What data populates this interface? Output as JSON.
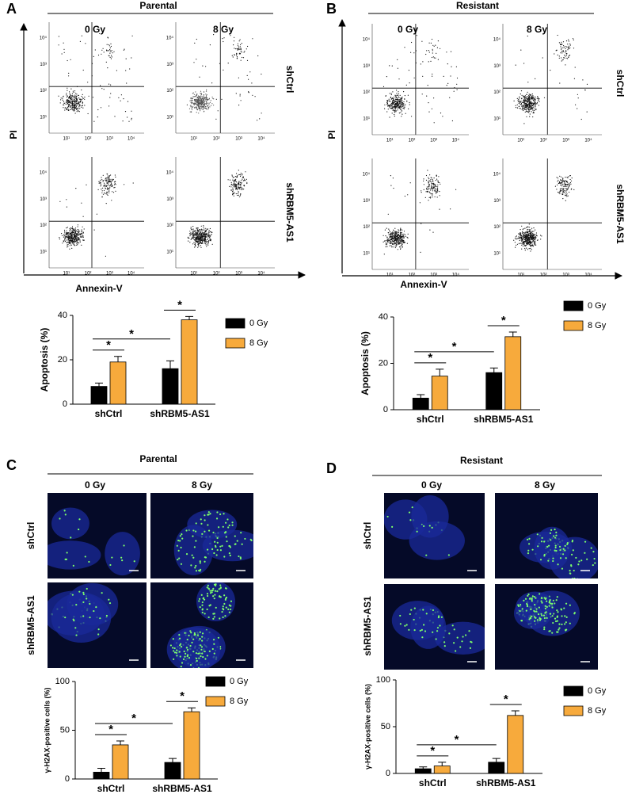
{
  "panels": [
    {
      "label": "A",
      "title": "Parental",
      "columns": [
        "0 Gy",
        "8 Gy"
      ],
      "rows": [
        "shCtrl",
        "shRBM5-AS1"
      ],
      "x_axis": "Annexin-V",
      "y_axis": "PI"
    },
    {
      "label": "B",
      "title": "Resistant",
      "columns": [
        "0 Gy",
        "8 Gy"
      ],
      "rows": [
        "shCtrl",
        "shRBM5-AS1"
      ],
      "x_axis": "Annexin-V",
      "y_axis": "PI"
    },
    {
      "label": "C",
      "title": "Parental",
      "columns": [
        "0 Gy",
        "8 Gy"
      ],
      "rows": [
        "shCtrl",
        "shRBM5-AS1"
      ]
    },
    {
      "label": "D",
      "title": "Resistant",
      "columns": [
        "0 Gy",
        "8 Gy"
      ],
      "rows": [
        "shCtrl",
        "shRBM5-AS1"
      ]
    }
  ],
  "flow_ticks": [
    "10¹",
    "10²",
    "10³",
    "10⁴"
  ],
  "chart_data": [
    {
      "type": "bar",
      "ylabel": "Apoptosis (%)",
      "categories": [
        "shCtrl",
        "shRBM5-AS1"
      ],
      "series": [
        {
          "name": "0 Gy",
          "color": "#000000",
          "values": [
            8,
            16
          ],
          "errors": [
            1.5,
            3.5
          ]
        },
        {
          "name": "8 Gy",
          "color": "#f7aa3c",
          "values": [
            19,
            38
          ],
          "errors": [
            2.5,
            1.5
          ]
        }
      ],
      "ylim": [
        0,
        40
      ],
      "yticks": [
        0,
        20,
        40
      ],
      "annotations": [
        "*",
        "*",
        "*"
      ]
    },
    {
      "type": "bar",
      "ylabel": "Apoptosis (%)",
      "categories": [
        "shCtrl",
        "shRBM5-AS1"
      ],
      "series": [
        {
          "name": "0 Gy",
          "color": "#000000",
          "values": [
            5,
            16
          ],
          "errors": [
            1.5,
            2
          ]
        },
        {
          "name": "8 Gy",
          "color": "#f7aa3c",
          "values": [
            14.5,
            31.5
          ],
          "errors": [
            3,
            2
          ]
        }
      ],
      "ylim": [
        0,
        40
      ],
      "yticks": [
        0,
        20,
        40
      ],
      "annotations": [
        "*",
        "*",
        "*"
      ]
    },
    {
      "type": "bar",
      "ylabel": "γ-H2AX-positive cells (%)",
      "categories": [
        "shCtrl",
        "shRBM5-AS1"
      ],
      "series": [
        {
          "name": "0 Gy",
          "color": "#000000",
          "values": [
            7,
            17
          ],
          "errors": [
            4,
            4
          ]
        },
        {
          "name": "8 Gy",
          "color": "#f7aa3c",
          "values": [
            35,
            69
          ],
          "errors": [
            4,
            4
          ]
        }
      ],
      "ylim": [
        0,
        100
      ],
      "yticks": [
        0,
        50,
        100
      ],
      "annotations": [
        "*",
        "*",
        "*"
      ]
    },
    {
      "type": "bar",
      "ylabel": "γ-H2AX-positive cells (%)",
      "categories": [
        "shCtrl",
        "shRBM5-AS1"
      ],
      "series": [
        {
          "name": "0 Gy",
          "color": "#000000",
          "values": [
            5,
            12
          ],
          "errors": [
            2,
            4
          ]
        },
        {
          "name": "8 Gy",
          "color": "#f7aa3c",
          "values": [
            8,
            62
          ],
          "errors": [
            4,
            5
          ]
        }
      ],
      "ylim": [
        0,
        100
      ],
      "yticks": [
        0,
        50,
        100
      ],
      "annotations": [
        "*",
        "*",
        "*"
      ]
    }
  ]
}
